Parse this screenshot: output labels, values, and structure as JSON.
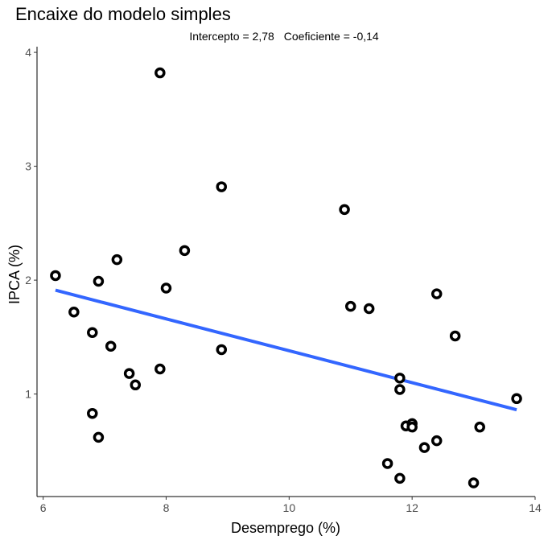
{
  "chart_data": {
    "type": "scatter",
    "title": "Encaixe do modelo simples",
    "subtitle": {
      "intercept": "Intercepto = 2,78",
      "coefficient": "Coeficiente = -0,14"
    },
    "xlabel": "Desemprego (%)",
    "ylabel": "IPCA (%)",
    "xlim": [
      5.9,
      14.0
    ],
    "ylim": [
      0.1,
      4.05
    ],
    "x_ticks": [
      6,
      8,
      10,
      12,
      14
    ],
    "y_ticks": [
      1,
      2,
      3,
      4
    ],
    "grid": false,
    "points": [
      {
        "x": 6.2,
        "y": 2.04
      },
      {
        "x": 6.5,
        "y": 1.72
      },
      {
        "x": 6.8,
        "y": 1.54
      },
      {
        "x": 6.8,
        "y": 0.83
      },
      {
        "x": 6.9,
        "y": 1.99
      },
      {
        "x": 6.9,
        "y": 0.62
      },
      {
        "x": 7.1,
        "y": 1.42
      },
      {
        "x": 7.2,
        "y": 2.18
      },
      {
        "x": 7.4,
        "y": 1.18
      },
      {
        "x": 7.5,
        "y": 1.08
      },
      {
        "x": 7.9,
        "y": 3.82
      },
      {
        "x": 7.9,
        "y": 1.22
      },
      {
        "x": 8.0,
        "y": 1.93
      },
      {
        "x": 8.3,
        "y": 2.26
      },
      {
        "x": 8.9,
        "y": 2.82
      },
      {
        "x": 8.9,
        "y": 1.39
      },
      {
        "x": 10.9,
        "y": 2.62
      },
      {
        "x": 11.0,
        "y": 1.77
      },
      {
        "x": 11.3,
        "y": 1.75
      },
      {
        "x": 11.6,
        "y": 0.39
      },
      {
        "x": 11.8,
        "y": 1.14
      },
      {
        "x": 11.8,
        "y": 1.04
      },
      {
        "x": 11.8,
        "y": 0.26
      },
      {
        "x": 11.9,
        "y": 0.72
      },
      {
        "x": 12.0,
        "y": 0.74
      },
      {
        "x": 12.0,
        "y": 0.71
      },
      {
        "x": 12.2,
        "y": 0.53
      },
      {
        "x": 12.4,
        "y": 1.88
      },
      {
        "x": 12.4,
        "y": 0.59
      },
      {
        "x": 12.7,
        "y": 1.51
      },
      {
        "x": 13.0,
        "y": 0.22
      },
      {
        "x": 13.1,
        "y": 0.71
      },
      {
        "x": 13.7,
        "y": 0.96
      }
    ],
    "fit_line": {
      "intercept": 2.78,
      "slope": -0.14,
      "x_range": [
        6.2,
        13.7
      ],
      "color": "#3366FF"
    },
    "point_color": "#000000"
  }
}
